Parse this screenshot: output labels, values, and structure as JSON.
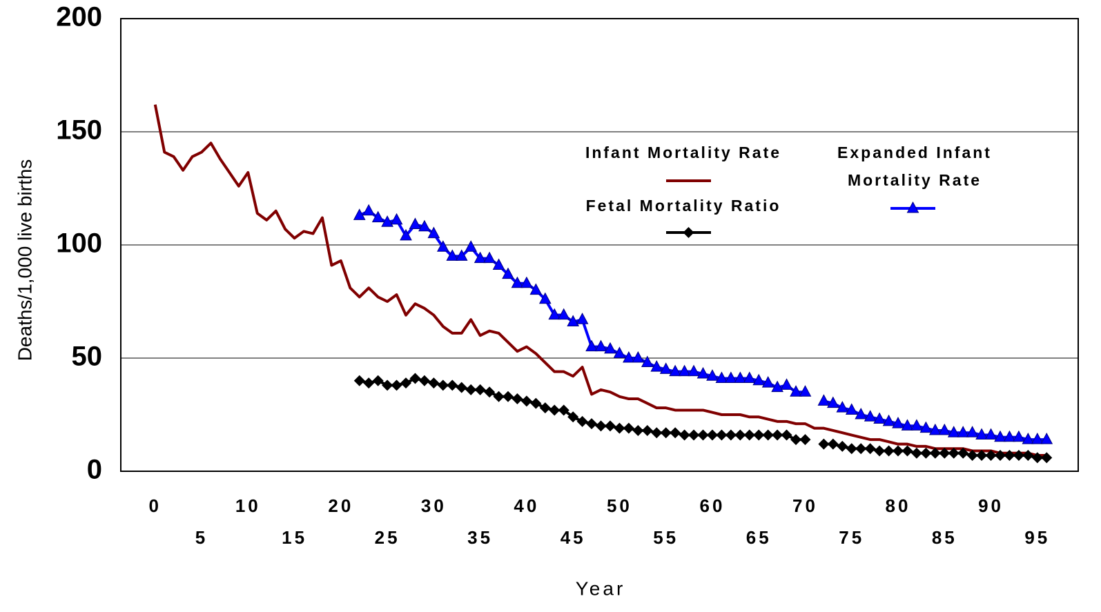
{
  "chart_data": {
    "type": "line",
    "y_label": "Deaths/1,000 live births",
    "x_label": "Year",
    "x": [
      0,
      1,
      2,
      3,
      4,
      5,
      6,
      7,
      8,
      9,
      10,
      11,
      12,
      13,
      14,
      15,
      16,
      17,
      18,
      19,
      20,
      21,
      22,
      23,
      24,
      25,
      26,
      27,
      28,
      29,
      30,
      31,
      32,
      33,
      34,
      35,
      36,
      37,
      38,
      39,
      40,
      41,
      42,
      43,
      44,
      45,
      46,
      47,
      48,
      49,
      50,
      51,
      52,
      53,
      54,
      55,
      56,
      57,
      58,
      59,
      60,
      61,
      62,
      63,
      64,
      65,
      66,
      67,
      68,
      69,
      70,
      71,
      72,
      73,
      74,
      75,
      76,
      77,
      78,
      79,
      80,
      81,
      82,
      83,
      84,
      85,
      86,
      87,
      88,
      89,
      90,
      91,
      92,
      93,
      94,
      95,
      96
    ],
    "series": [
      {
        "name": "Infant Mortality Rate",
        "color": "#800000",
        "marker": "none",
        "values": [
          162,
          141,
          139,
          133,
          139,
          141,
          145,
          138,
          132,
          126,
          132,
          114,
          111,
          115,
          107,
          103,
          106,
          105,
          112,
          91,
          93,
          81,
          77,
          81,
          77,
          75,
          78,
          69,
          74,
          72,
          69,
          64,
          61,
          61,
          67,
          60,
          62,
          61,
          57,
          53,
          55,
          52,
          48,
          44,
          44,
          42,
          46,
          34,
          36,
          35,
          33,
          32,
          32,
          30,
          28,
          28,
          27,
          27,
          27,
          27,
          26,
          25,
          25,
          25,
          24,
          24,
          23,
          22,
          22,
          21,
          21,
          19,
          19,
          18,
          17,
          16,
          15,
          14,
          14,
          13,
          12,
          12,
          11,
          11,
          10,
          10,
          10,
          10,
          9,
          9,
          9,
          8,
          8,
          8,
          8,
          7,
          7
        ]
      },
      {
        "name": "Fetal Mortality Ratio",
        "color": "#000000",
        "marker": "diamond",
        "values": [
          null,
          null,
          null,
          null,
          null,
          null,
          null,
          null,
          null,
          null,
          null,
          null,
          null,
          null,
          null,
          null,
          null,
          null,
          null,
          null,
          null,
          null,
          40,
          39,
          40,
          38,
          38,
          39,
          41,
          40,
          39,
          38,
          38,
          37,
          36,
          36,
          35,
          33,
          33,
          32,
          31,
          30,
          28,
          27,
          27,
          24,
          22,
          21,
          20,
          20,
          19,
          19,
          18,
          18,
          17,
          17,
          17,
          16,
          16,
          16,
          16,
          16,
          16,
          16,
          16,
          16,
          16,
          16,
          16,
          14,
          14,
          null,
          12,
          12,
          11,
          10,
          10,
          10,
          9,
          9,
          9,
          9,
          8,
          8,
          8,
          8,
          8,
          8,
          7,
          7,
          7,
          7,
          7,
          7,
          7,
          6,
          6
        ]
      },
      {
        "name": "Expanded Infant Mortality Rate",
        "color": "#0000ff",
        "marker": "triangle",
        "values": [
          null,
          null,
          null,
          null,
          null,
          null,
          null,
          null,
          null,
          null,
          null,
          null,
          null,
          null,
          null,
          null,
          null,
          null,
          null,
          null,
          null,
          null,
          113,
          115,
          112,
          110,
          111,
          104,
          109,
          108,
          105,
          99,
          95,
          95,
          99,
          94,
          94,
          91,
          87,
          83,
          83,
          80,
          76,
          69,
          69,
          66,
          67,
          55,
          55,
          54,
          52,
          50,
          50,
          48,
          46,
          45,
          44,
          44,
          44,
          43,
          42,
          41,
          41,
          41,
          41,
          40,
          39,
          37,
          38,
          35,
          35,
          null,
          31,
          30,
          28,
          27,
          25,
          24,
          23,
          22,
          21,
          20,
          20,
          19,
          18,
          18,
          17,
          17,
          17,
          16,
          16,
          15,
          15,
          15,
          14,
          14,
          14
        ]
      }
    ],
    "xlim": [
      -3.7,
      99.4
    ],
    "xticks": [
      0,
      5,
      10,
      15,
      20,
      25,
      30,
      35,
      40,
      45,
      50,
      55,
      60,
      65,
      70,
      75,
      80,
      85,
      90,
      95
    ],
    "ylim": [
      0,
      200
    ],
    "yticks": [
      0,
      50,
      100,
      150,
      200
    ],
    "grid": true
  }
}
